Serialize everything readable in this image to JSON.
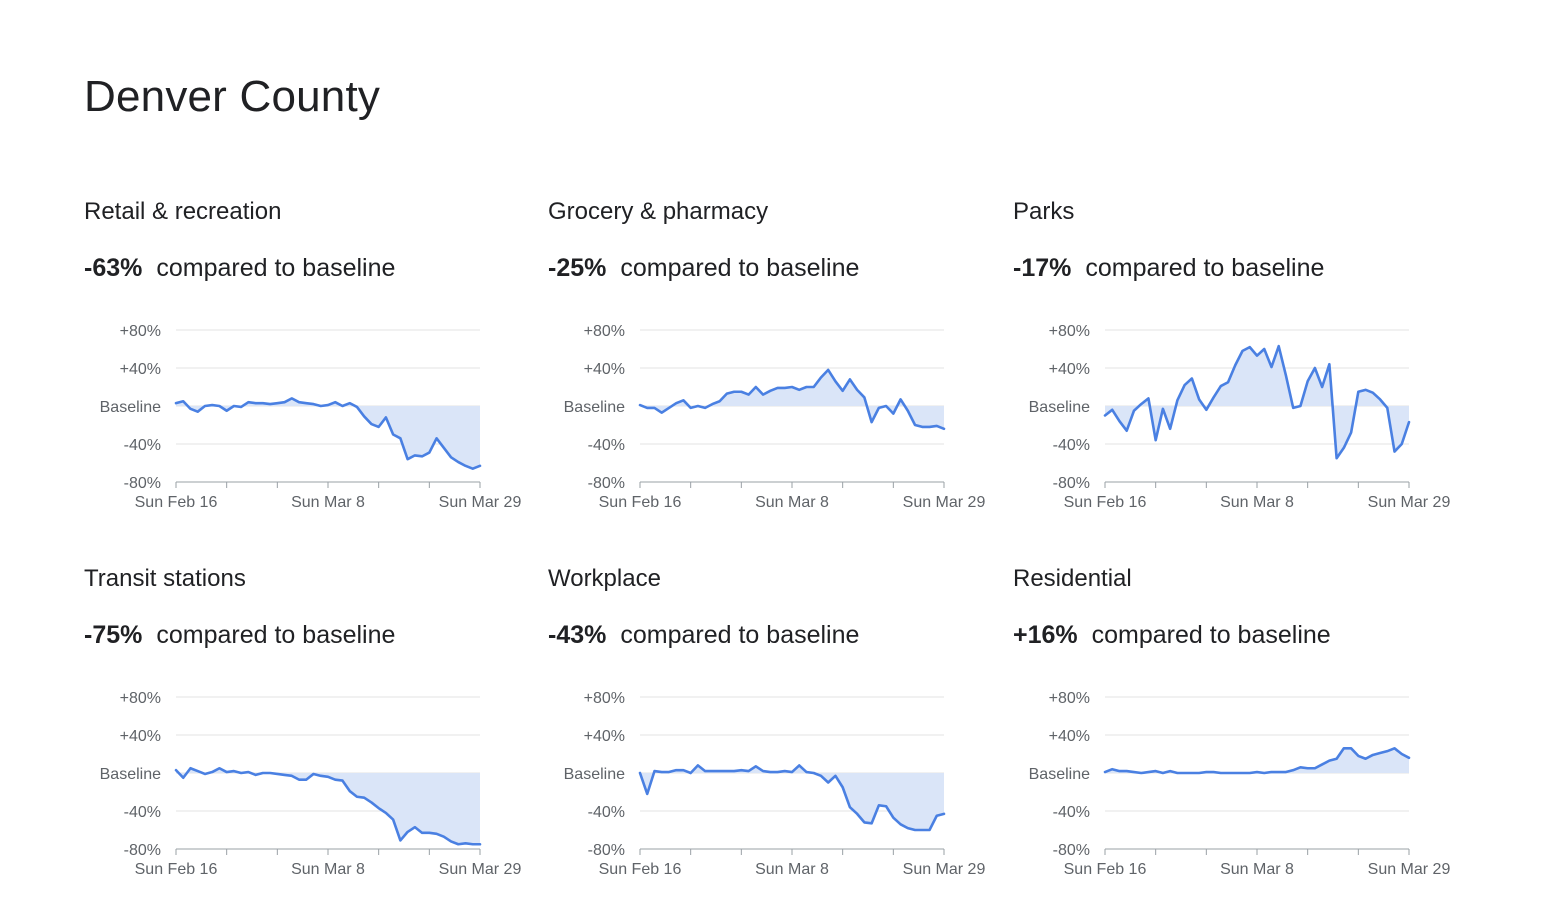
{
  "page": {
    "title": "Denver County"
  },
  "colors": {
    "line": "#4a80e2",
    "fill": "#dae5f8",
    "grid": "#e3e3e3",
    "axis": "#9aa0a6",
    "text": "#5f6368"
  },
  "chart_data": [
    {
      "type": "line",
      "title": "Retail & recreation",
      "change": "-63%",
      "subtitle": "compared to baseline",
      "y_tick_labels": [
        "+80%",
        "+40%",
        "Baseline",
        "-40%",
        "-80%"
      ],
      "ylim": [
        -80,
        80
      ],
      "x_tick_labels": [
        "Sun Feb 16",
        "Sun Mar 8",
        "Sun Mar 29"
      ],
      "x_tick_positions": [
        0,
        21,
        42
      ],
      "values": [
        3,
        5,
        -3,
        -6,
        0,
        1,
        0,
        -5,
        0,
        -1,
        4,
        3,
        3,
        2,
        3,
        4,
        8,
        4,
        3,
        2,
        0,
        1,
        4,
        0,
        3,
        -1,
        -11,
        -19,
        -22,
        -12,
        -30,
        -34,
        -56,
        -52,
        -53,
        -49,
        -34,
        -44,
        -54,
        -59,
        -63,
        -66,
        -63
      ]
    },
    {
      "type": "line",
      "title": "Grocery & pharmacy",
      "change": "-25%",
      "subtitle": "compared to baseline",
      "y_tick_labels": [
        "+80%",
        "+40%",
        "Baseline",
        "-40%",
        "-80%"
      ],
      "ylim": [
        -80,
        80
      ],
      "x_tick_labels": [
        "Sun Feb 16",
        "Sun Mar 8",
        "Sun Mar 29"
      ],
      "x_tick_positions": [
        0,
        21,
        42
      ],
      "values": [
        1,
        -2,
        -2,
        -7,
        -2,
        3,
        6,
        -2,
        0,
        -2,
        2,
        5,
        13,
        15,
        15,
        12,
        20,
        12,
        16,
        19,
        19,
        20,
        17,
        20,
        20,
        30,
        38,
        26,
        16,
        28,
        17,
        9,
        -17,
        -2,
        0,
        -8,
        7,
        -5,
        -20,
        -22,
        -22,
        -21,
        -24
      ]
    },
    {
      "type": "line",
      "title": "Parks",
      "change": "-17%",
      "subtitle": "compared to baseline",
      "y_tick_labels": [
        "+80%",
        "+40%",
        "Baseline",
        "-40%",
        "-80%"
      ],
      "ylim": [
        -80,
        80
      ],
      "x_tick_labels": [
        "Sun Feb 16",
        "Sun Mar 8",
        "Sun Mar 29"
      ],
      "x_tick_positions": [
        0,
        21,
        42
      ],
      "values": [
        -10,
        -4,
        -16,
        -26,
        -5,
        2,
        8,
        -36,
        -3,
        -24,
        6,
        22,
        29,
        7,
        -4,
        9,
        21,
        25,
        43,
        58,
        62,
        53,
        60,
        41,
        63,
        32,
        -2,
        0,
        26,
        40,
        20,
        44,
        -55,
        -44,
        -28,
        15,
        17,
        14,
        7,
        -2,
        -48,
        -40,
        -17
      ]
    },
    {
      "type": "line",
      "title": "Transit stations",
      "change": "-75%",
      "subtitle": "compared to baseline",
      "y_tick_labels": [
        "+80%",
        "+40%",
        "Baseline",
        "-40%",
        "-80%"
      ],
      "ylim": [
        -80,
        80
      ],
      "x_tick_labels": [
        "Sun Feb 16",
        "Sun Mar 8",
        "Sun Mar 29"
      ],
      "x_tick_positions": [
        0,
        21,
        42
      ],
      "values": [
        3,
        -5,
        5,
        2,
        -1,
        1,
        5,
        1,
        2,
        0,
        1,
        -2,
        0,
        0,
        -1,
        -2,
        -3,
        -7,
        -7,
        -1,
        -3,
        -4,
        -7,
        -8,
        -19,
        -25,
        -26,
        -31,
        -37,
        -42,
        -49,
        -71,
        -62,
        -57,
        -63,
        -63,
        -64,
        -67,
        -72,
        -75,
        -74,
        -75,
        -75
      ]
    },
    {
      "type": "line",
      "title": "Workplace",
      "change": "-43%",
      "subtitle": "compared to baseline",
      "y_tick_labels": [
        "+80%",
        "+40%",
        "Baseline",
        "-40%",
        "-80%"
      ],
      "ylim": [
        -80,
        80
      ],
      "x_tick_labels": [
        "Sun Feb 16",
        "Sun Mar 8",
        "Sun Mar 29"
      ],
      "x_tick_positions": [
        0,
        21,
        42
      ],
      "values": [
        0,
        -22,
        2,
        1,
        1,
        3,
        3,
        0,
        8,
        2,
        2,
        2,
        2,
        2,
        3,
        2,
        7,
        2,
        1,
        1,
        2,
        1,
        8,
        1,
        0,
        -3,
        -10,
        -3,
        -15,
        -36,
        -43,
        -52,
        -53,
        -34,
        -35,
        -47,
        -54,
        -58,
        -60,
        -60,
        -60,
        -45,
        -43
      ]
    },
    {
      "type": "line",
      "title": "Residential",
      "change": "+16%",
      "subtitle": "compared to baseline",
      "y_tick_labels": [
        "+80%",
        "+40%",
        "Baseline",
        "-40%",
        "-80%"
      ],
      "ylim": [
        -80,
        80
      ],
      "x_tick_labels": [
        "Sun Feb 16",
        "Sun Mar 8",
        "Sun Mar 29"
      ],
      "x_tick_positions": [
        0,
        21,
        42
      ],
      "values": [
        1,
        4,
        2,
        2,
        1,
        0,
        1,
        2,
        0,
        2,
        0,
        0,
        0,
        0,
        1,
        1,
        0,
        0,
        0,
        0,
        0,
        1,
        0,
        1,
        1,
        1,
        3,
        6,
        5,
        5,
        9,
        13,
        15,
        26,
        26,
        18,
        15,
        19,
        21,
        23,
        26,
        20,
        16
      ]
    }
  ]
}
